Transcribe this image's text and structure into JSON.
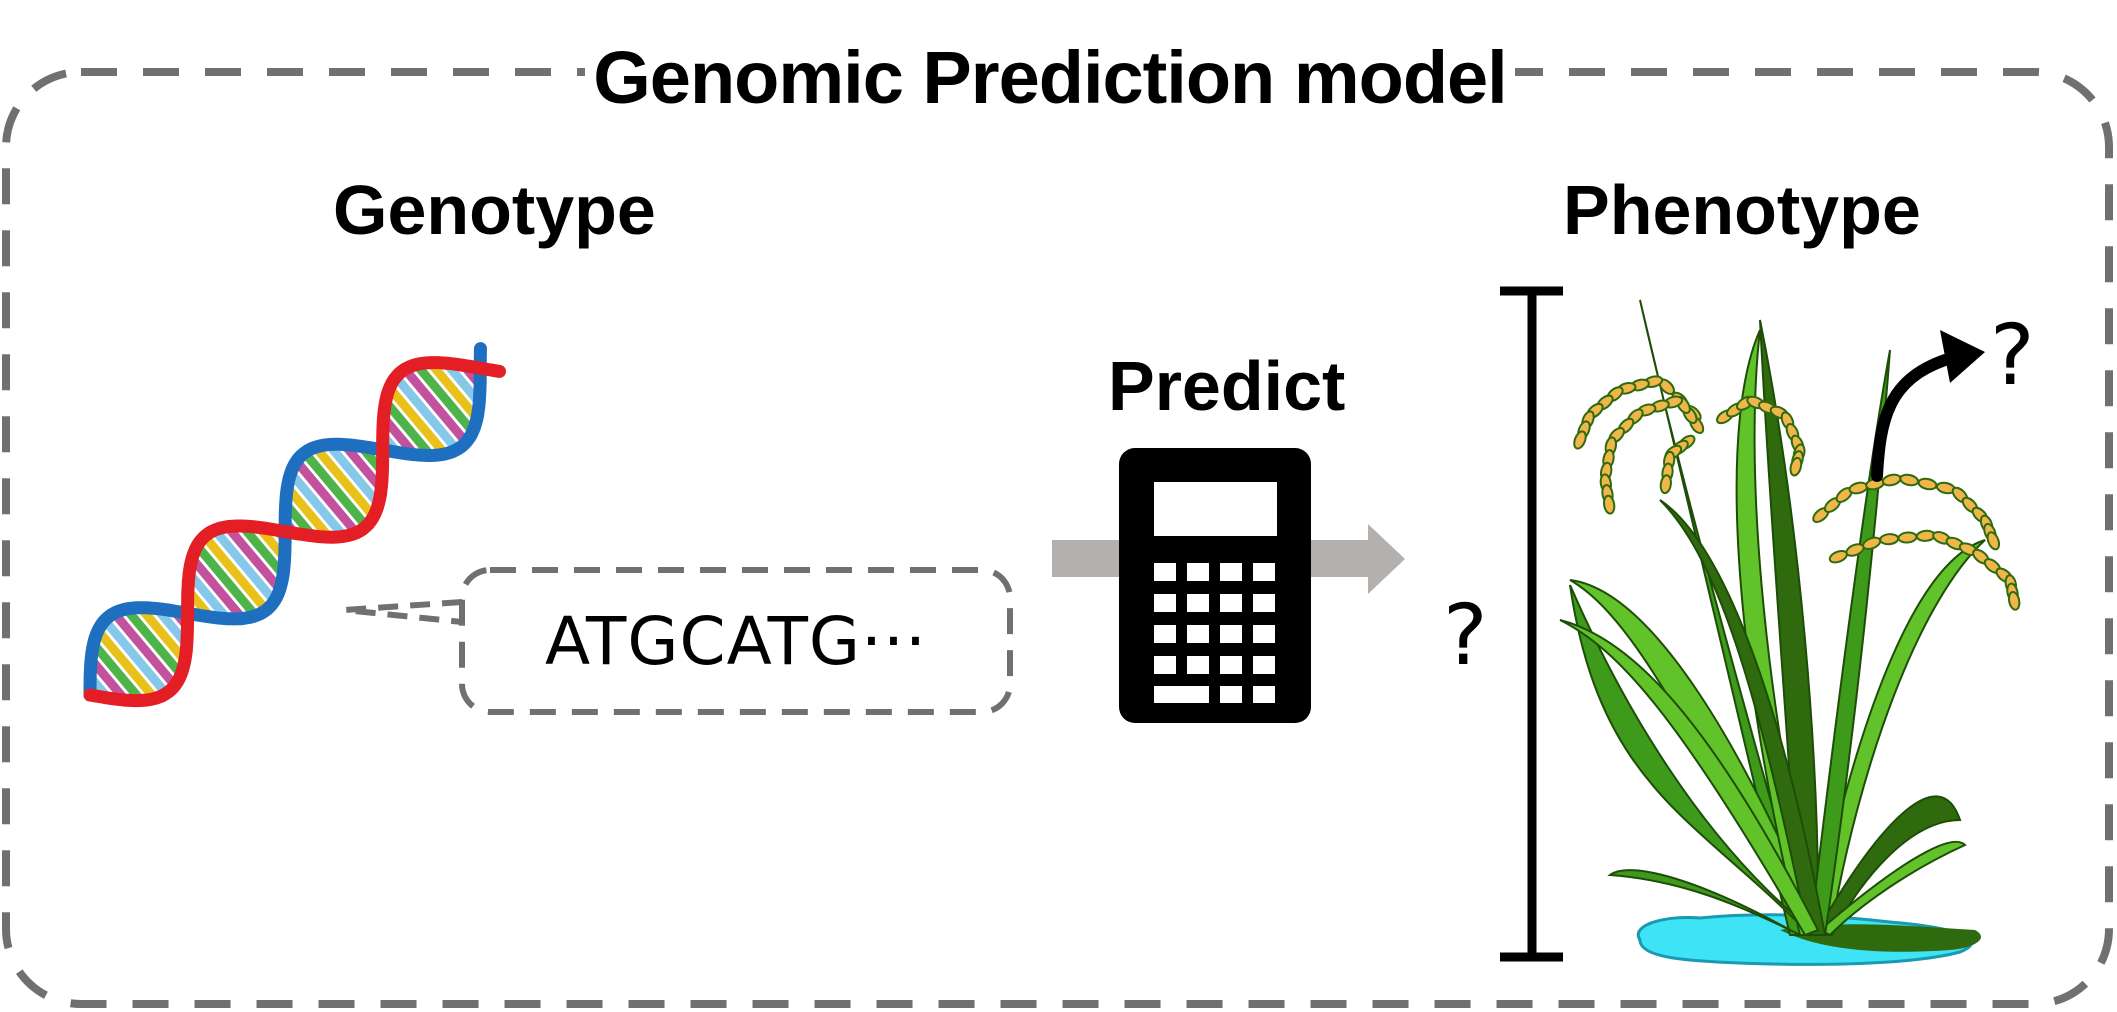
{
  "title": "Genomic Prediction model",
  "genotype_label": "Genotype",
  "phenotype_label": "Phenotype",
  "predict_label": "Predict",
  "sequence_text": "ATGCATG···",
  "height_unknown": "?",
  "growth_unknown": "?",
  "icons": [
    "dna-helix-icon",
    "calculator-icon",
    "rice-plant-icon",
    "height-bar-icon",
    "curved-arrow-icon"
  ],
  "colors": {
    "frame_dash": "#707070",
    "arrow_gray": "#b3b0ae",
    "dna_backbone_red": "#e31e24",
    "dna_backbone_blue": "#1f6fc0",
    "leaf_green": "#3d9a1a",
    "grain_orange": "#f0b64a",
    "water_cyan": "#3fe3f6"
  }
}
